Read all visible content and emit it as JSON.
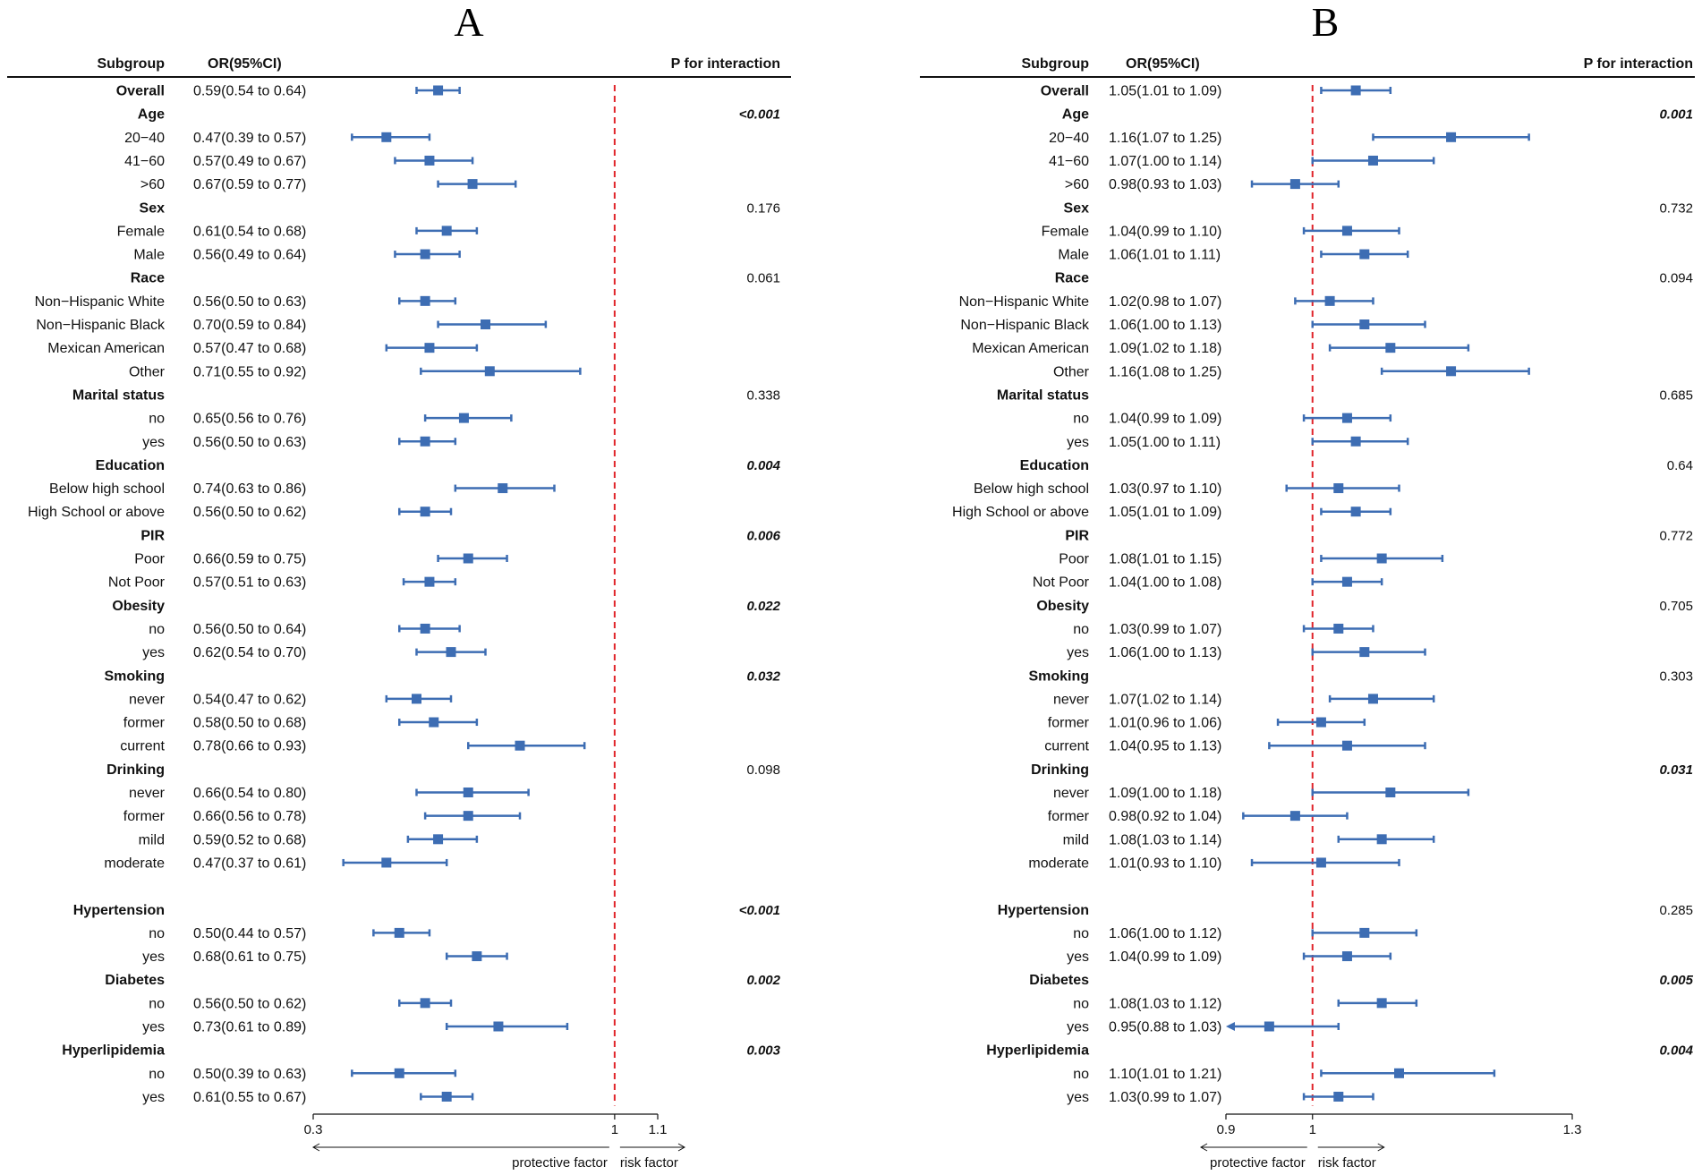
{
  "chart_data": [
    {
      "type": "forest",
      "panel": "A",
      "header": {
        "subgroup": "Subgroup",
        "or": "OR(95%CI)",
        "p": "P for interaction"
      },
      "xlim": [
        0.3,
        1.1
      ],
      "ticks": [
        "0.3",
        "1",
        "1.1"
      ],
      "ref": 1,
      "axis_left": "protective factor",
      "axis_right": "risk factor",
      "rows": [
        {
          "label": "Overall",
          "group": true,
          "or": 0.59,
          "lo": 0.54,
          "hi": 0.64,
          "text": "0.59(0.54 to 0.64)"
        },
        {
          "label": "Age",
          "group": true,
          "p": "<0.001",
          "sig": true
        },
        {
          "label": "20−40",
          "or": 0.47,
          "lo": 0.39,
          "hi": 0.57,
          "text": "0.47(0.39 to 0.57)"
        },
        {
          "label": "41−60",
          "or": 0.57,
          "lo": 0.49,
          "hi": 0.67,
          "text": "0.57(0.49 to 0.67)"
        },
        {
          "label": ">60",
          "or": 0.67,
          "lo": 0.59,
          "hi": 0.77,
          "text": "0.67(0.59 to 0.77)"
        },
        {
          "label": "Sex",
          "group": true,
          "p": "0.176"
        },
        {
          "label": "Female",
          "or": 0.61,
          "lo": 0.54,
          "hi": 0.68,
          "text": "0.61(0.54 to 0.68)"
        },
        {
          "label": "Male",
          "or": 0.56,
          "lo": 0.49,
          "hi": 0.64,
          "text": "0.56(0.49 to 0.64)"
        },
        {
          "label": "Race",
          "group": true,
          "p": "0.061"
        },
        {
          "label": "Non−Hispanic White",
          "or": 0.56,
          "lo": 0.5,
          "hi": 0.63,
          "text": "0.56(0.50 to 0.63)"
        },
        {
          "label": "Non−Hispanic Black",
          "or": 0.7,
          "lo": 0.59,
          "hi": 0.84,
          "text": "0.70(0.59 to 0.84)"
        },
        {
          "label": "Mexican American",
          "or": 0.57,
          "lo": 0.47,
          "hi": 0.68,
          "text": "0.57(0.47 to 0.68)"
        },
        {
          "label": "Other",
          "or": 0.71,
          "lo": 0.55,
          "hi": 0.92,
          "text": "0.71(0.55 to 0.92)"
        },
        {
          "label": "Marital status",
          "group": true,
          "p": "0.338"
        },
        {
          "label": "no",
          "or": 0.65,
          "lo": 0.56,
          "hi": 0.76,
          "text": "0.65(0.56 to 0.76)"
        },
        {
          "label": "yes",
          "or": 0.56,
          "lo": 0.5,
          "hi": 0.63,
          "text": "0.56(0.50 to 0.63)"
        },
        {
          "label": "Education",
          "group": true,
          "p": "0.004",
          "sig": true
        },
        {
          "label": "Below high school",
          "or": 0.74,
          "lo": 0.63,
          "hi": 0.86,
          "text": "0.74(0.63 to 0.86)"
        },
        {
          "label": "High School or above",
          "or": 0.56,
          "lo": 0.5,
          "hi": 0.62,
          "text": "0.56(0.50 to 0.62)"
        },
        {
          "label": "PIR",
          "group": true,
          "p": "0.006",
          "sig": true
        },
        {
          "label": "Poor",
          "or": 0.66,
          "lo": 0.59,
          "hi": 0.75,
          "text": "0.66(0.59 to 0.75)"
        },
        {
          "label": "Not Poor",
          "or": 0.57,
          "lo": 0.51,
          "hi": 0.63,
          "text": "0.57(0.51 to 0.63)"
        },
        {
          "label": "Obesity",
          "group": true,
          "p": "0.022",
          "sig": true
        },
        {
          "label": "no",
          "or": 0.56,
          "lo": 0.5,
          "hi": 0.64,
          "text": "0.56(0.50 to 0.64)"
        },
        {
          "label": "yes",
          "or": 0.62,
          "lo": 0.54,
          "hi": 0.7,
          "text": "0.62(0.54 to 0.70)"
        },
        {
          "label": "Smoking",
          "group": true,
          "p": "0.032",
          "sig": true
        },
        {
          "label": "never",
          "or": 0.54,
          "lo": 0.47,
          "hi": 0.62,
          "text": "0.54(0.47 to 0.62)"
        },
        {
          "label": "former",
          "or": 0.58,
          "lo": 0.5,
          "hi": 0.68,
          "text": "0.58(0.50 to 0.68)"
        },
        {
          "label": "current",
          "or": 0.78,
          "lo": 0.66,
          "hi": 0.93,
          "text": "0.78(0.66 to 0.93)"
        },
        {
          "label": "Drinking",
          "group": true,
          "p": "0.098"
        },
        {
          "label": "never",
          "or": 0.66,
          "lo": 0.54,
          "hi": 0.8,
          "text": "0.66(0.54 to 0.80)"
        },
        {
          "label": "former",
          "or": 0.66,
          "lo": 0.56,
          "hi": 0.78,
          "text": "0.66(0.56 to 0.78)"
        },
        {
          "label": "mild",
          "or": 0.59,
          "lo": 0.52,
          "hi": 0.68,
          "text": "0.59(0.52 to 0.68)"
        },
        {
          "label": "moderate",
          "or": 0.47,
          "lo": 0.37,
          "hi": 0.61,
          "text": "0.47(0.37 to 0.61)"
        },
        {
          "blank": true
        },
        {
          "label": "Hypertension",
          "group": true,
          "p": "<0.001",
          "sig": true
        },
        {
          "label": "no",
          "or": 0.5,
          "lo": 0.44,
          "hi": 0.57,
          "text": "0.50(0.44 to 0.57)"
        },
        {
          "label": "yes",
          "or": 0.68,
          "lo": 0.61,
          "hi": 0.75,
          "text": "0.68(0.61 to 0.75)"
        },
        {
          "label": "Diabetes",
          "group": true,
          "p": "0.002",
          "sig": true
        },
        {
          "label": "no",
          "or": 0.56,
          "lo": 0.5,
          "hi": 0.62,
          "text": "0.56(0.50 to 0.62)"
        },
        {
          "label": "yes",
          "or": 0.73,
          "lo": 0.61,
          "hi": 0.89,
          "text": "0.73(0.61 to 0.89)"
        },
        {
          "label": "Hyperlipidemia",
          "group": true,
          "p": "0.003",
          "sig": true
        },
        {
          "label": "no",
          "or": 0.5,
          "lo": 0.39,
          "hi": 0.63,
          "text": "0.50(0.39 to 0.63)"
        },
        {
          "label": "yes",
          "or": 0.61,
          "lo": 0.55,
          "hi": 0.67,
          "text": "0.61(0.55 to 0.67)"
        }
      ]
    },
    {
      "type": "forest",
      "panel": "B",
      "header": {
        "subgroup": "Subgroup",
        "or": "OR(95%CI)",
        "p": "P for interaction"
      },
      "xlim": [
        0.9,
        1.3
      ],
      "ticks": [
        "0.9",
        "1",
        "1.3"
      ],
      "ref": 1,
      "axis_left": "protective factor",
      "axis_right": "risk factor",
      "rows": [
        {
          "label": "Overall",
          "group": true,
          "or": 1.05,
          "lo": 1.01,
          "hi": 1.09,
          "text": "1.05(1.01 to 1.09)"
        },
        {
          "label": "Age",
          "group": true,
          "p": "0.001",
          "sig": true
        },
        {
          "label": "20−40",
          "or": 1.16,
          "lo": 1.07,
          "hi": 1.25,
          "text": "1.16(1.07 to 1.25)"
        },
        {
          "label": "41−60",
          "or": 1.07,
          "lo": 1.0,
          "hi": 1.14,
          "text": "1.07(1.00 to 1.14)"
        },
        {
          "label": ">60",
          "or": 0.98,
          "lo": 0.93,
          "hi": 1.03,
          "text": "0.98(0.93 to 1.03)"
        },
        {
          "label": "Sex",
          "group": true,
          "p": "0.732"
        },
        {
          "label": "Female",
          "or": 1.04,
          "lo": 0.99,
          "hi": 1.1,
          "text": "1.04(0.99 to 1.10)"
        },
        {
          "label": "Male",
          "or": 1.06,
          "lo": 1.01,
          "hi": 1.11,
          "text": "1.06(1.01 to 1.11)"
        },
        {
          "label": "Race",
          "group": true,
          "p": "0.094"
        },
        {
          "label": "Non−Hispanic White",
          "or": 1.02,
          "lo": 0.98,
          "hi": 1.07,
          "text": "1.02(0.98 to 1.07)"
        },
        {
          "label": "Non−Hispanic Black",
          "or": 1.06,
          "lo": 1.0,
          "hi": 1.13,
          "text": "1.06(1.00 to 1.13)"
        },
        {
          "label": "Mexican American",
          "or": 1.09,
          "lo": 1.02,
          "hi": 1.18,
          "text": "1.09(1.02 to 1.18)"
        },
        {
          "label": "Other",
          "or": 1.16,
          "lo": 1.08,
          "hi": 1.25,
          "text": "1.16(1.08 to 1.25)"
        },
        {
          "label": "Marital status",
          "group": true,
          "p": "0.685"
        },
        {
          "label": "no",
          "or": 1.04,
          "lo": 0.99,
          "hi": 1.09,
          "text": "1.04(0.99 to 1.09)"
        },
        {
          "label": "yes",
          "or": 1.05,
          "lo": 1.0,
          "hi": 1.11,
          "text": "1.05(1.00 to 1.11)"
        },
        {
          "label": "Education",
          "group": true,
          "p": "0.64"
        },
        {
          "label": "Below high school",
          "or": 1.03,
          "lo": 0.97,
          "hi": 1.1,
          "text": "1.03(0.97 to 1.10)"
        },
        {
          "label": "High School or above",
          "or": 1.05,
          "lo": 1.01,
          "hi": 1.09,
          "text": "1.05(1.01 to 1.09)"
        },
        {
          "label": "PIR",
          "group": true,
          "p": "0.772"
        },
        {
          "label": "Poor",
          "or": 1.08,
          "lo": 1.01,
          "hi": 1.15,
          "text": "1.08(1.01 to 1.15)"
        },
        {
          "label": "Not Poor",
          "or": 1.04,
          "lo": 1.0,
          "hi": 1.08,
          "text": "1.04(1.00 to 1.08)"
        },
        {
          "label": "Obesity",
          "group": true,
          "p": "0.705"
        },
        {
          "label": "no",
          "or": 1.03,
          "lo": 0.99,
          "hi": 1.07,
          "text": "1.03(0.99 to 1.07)"
        },
        {
          "label": "yes",
          "or": 1.06,
          "lo": 1.0,
          "hi": 1.13,
          "text": "1.06(1.00 to 1.13)"
        },
        {
          "label": "Smoking",
          "group": true,
          "p": "0.303"
        },
        {
          "label": "never",
          "or": 1.07,
          "lo": 1.02,
          "hi": 1.14,
          "text": "1.07(1.02 to 1.14)"
        },
        {
          "label": "former",
          "or": 1.01,
          "lo": 0.96,
          "hi": 1.06,
          "text": "1.01(0.96 to 1.06)"
        },
        {
          "label": "current",
          "or": 1.04,
          "lo": 0.95,
          "hi": 1.13,
          "text": "1.04(0.95 to 1.13)"
        },
        {
          "label": "Drinking",
          "group": true,
          "p": "0.031",
          "sig": true
        },
        {
          "label": "never",
          "or": 1.09,
          "lo": 1.0,
          "hi": 1.18,
          "text": "1.09(1.00 to 1.18)"
        },
        {
          "label": "former",
          "or": 0.98,
          "lo": 0.92,
          "hi": 1.04,
          "text": "0.98(0.92 to 1.04)"
        },
        {
          "label": "mild",
          "or": 1.08,
          "lo": 1.03,
          "hi": 1.14,
          "text": "1.08(1.03 to 1.14)"
        },
        {
          "label": "moderate",
          "or": 1.01,
          "lo": 0.93,
          "hi": 1.1,
          "text": "1.01(0.93 to 1.10)"
        },
        {
          "blank": true
        },
        {
          "label": "Hypertension",
          "group": true,
          "p": "0.285"
        },
        {
          "label": "no",
          "or": 1.06,
          "lo": 1.0,
          "hi": 1.12,
          "text": "1.06(1.00 to 1.12)"
        },
        {
          "label": "yes",
          "or": 1.04,
          "lo": 0.99,
          "hi": 1.09,
          "text": "1.04(0.99 to 1.09)"
        },
        {
          "label": "Diabetes",
          "group": true,
          "p": "0.005",
          "sig": true
        },
        {
          "label": "no",
          "or": 1.08,
          "lo": 1.03,
          "hi": 1.12,
          "text": "1.08(1.03 to 1.12)"
        },
        {
          "label": "yes",
          "or": 0.95,
          "lo": 0.88,
          "hi": 1.03,
          "text": "0.95(0.88 to 1.03)",
          "arrow_left": true
        },
        {
          "label": "Hyperlipidemia",
          "group": true,
          "p": "0.004",
          "sig": true
        },
        {
          "label": "no",
          "or": 1.1,
          "lo": 1.01,
          "hi": 1.21,
          "text": "1.10(1.01 to 1.21)"
        },
        {
          "label": "yes",
          "or": 1.03,
          "lo": 0.99,
          "hi": 1.07,
          "text": "1.03(0.99 to 1.07)"
        }
      ]
    }
  ]
}
